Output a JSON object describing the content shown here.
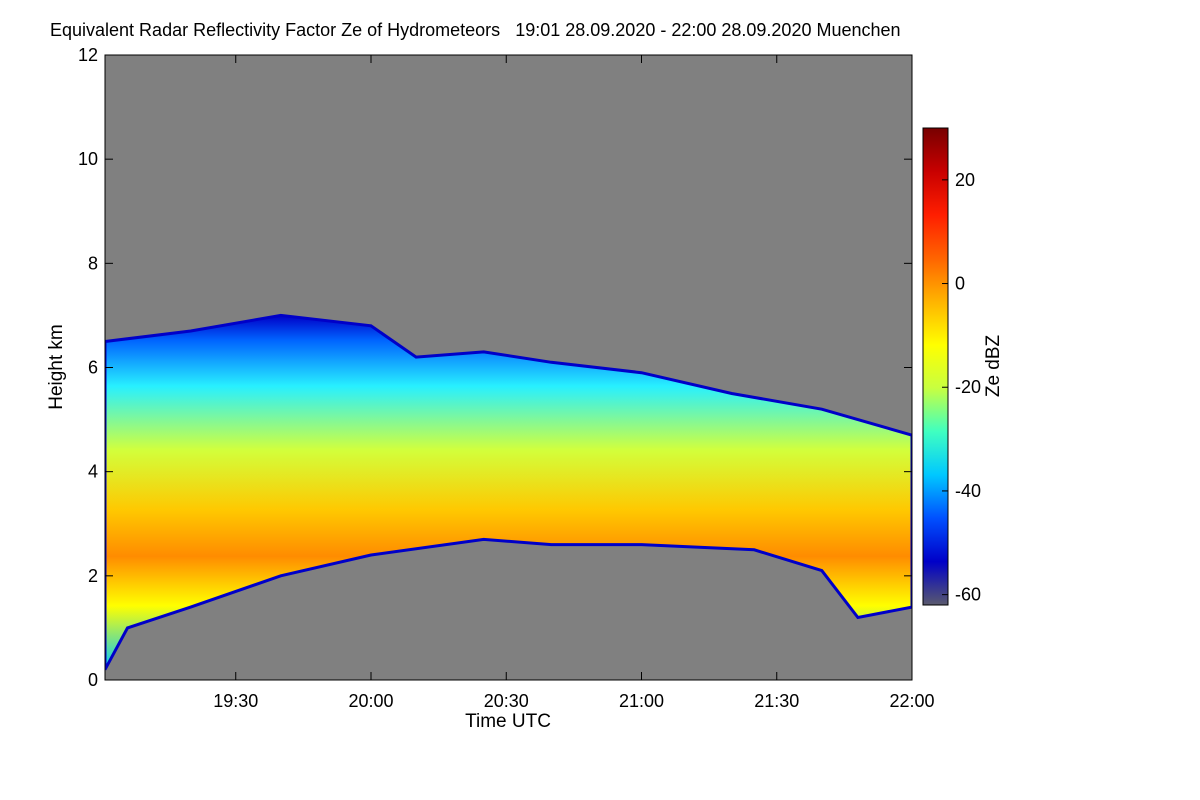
{
  "chart_data": {
    "type": "heatmap",
    "title": "Equivalent Radar Reflectivity Factor Ze of Hydrometeors",
    "time_range": "19:01 28.09.2020 - 22:00 28.09.2020",
    "location": "Muenchen",
    "xlabel": "Time UTC",
    "ylabel": "Height km",
    "x_start": "19:01",
    "x_end": "22:00",
    "x_range_min": [
      1141,
      1320
    ],
    "x_tick_minutes": [
      1170,
      1200,
      1230,
      1260,
      1290,
      1320
    ],
    "x_tick_labels": [
      "19:30",
      "20:00",
      "20:30",
      "21:00",
      "21:30",
      "22:00"
    ],
    "y_range_km": [
      0,
      12
    ],
    "y_ticks": [
      0,
      2,
      4,
      6,
      8,
      10,
      12
    ],
    "colorbar": {
      "label": "Ze dBZ",
      "range": [
        -62,
        30
      ],
      "ticks": [
        -60,
        -40,
        -20,
        0,
        20
      ],
      "colors": [
        "#5a5a6e",
        "#0000c8",
        "#0050ff",
        "#00c8ff",
        "#40ffc0",
        "#c8ff40",
        "#ffff00",
        "#ffb400",
        "#ff6400",
        "#ff1e00",
        "#c80000",
        "#780000"
      ]
    },
    "no_data_color": "#808080",
    "cloud_top_km": [
      {
        "t": 1141,
        "h": 6.5
      },
      {
        "t": 1160,
        "h": 6.7
      },
      {
        "t": 1180,
        "h": 7.0
      },
      {
        "t": 1200,
        "h": 6.8
      },
      {
        "t": 1210,
        "h": 6.2
      },
      {
        "t": 1225,
        "h": 6.3
      },
      {
        "t": 1240,
        "h": 6.1
      },
      {
        "t": 1260,
        "h": 5.9
      },
      {
        "t": 1280,
        "h": 5.5
      },
      {
        "t": 1300,
        "h": 5.2
      },
      {
        "t": 1320,
        "h": 4.7
      }
    ],
    "cloud_base_km": [
      {
        "t": 1141,
        "h": 0.2
      },
      {
        "t": 1146,
        "h": 1.0
      },
      {
        "t": 1160,
        "h": 1.4
      },
      {
        "t": 1180,
        "h": 2.0
      },
      {
        "t": 1200,
        "h": 2.4
      },
      {
        "t": 1225,
        "h": 2.7
      },
      {
        "t": 1240,
        "h": 2.6
      },
      {
        "t": 1260,
        "h": 2.6
      },
      {
        "t": 1285,
        "h": 2.5
      },
      {
        "t": 1300,
        "h": 2.1
      },
      {
        "t": 1308,
        "h": 1.2
      },
      {
        "t": 1320,
        "h": 1.4
      }
    ],
    "max_reflectivity_layer_km": [
      2.6,
      3.8
    ]
  }
}
